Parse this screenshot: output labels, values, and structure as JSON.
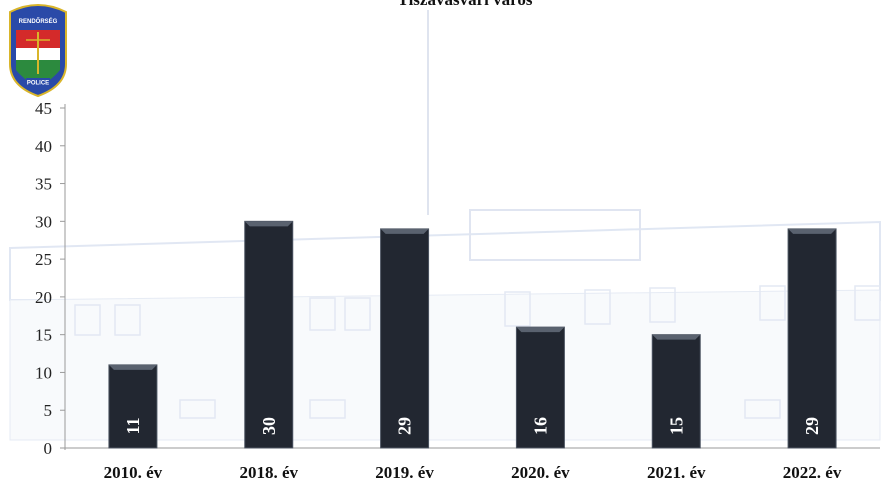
{
  "chart_data": {
    "type": "bar",
    "title": "Tiszavasvári város",
    "categories": [
      "2010. év",
      "2018. év",
      "2019. év",
      "2020. év",
      "2021. év",
      "2022. év"
    ],
    "values": [
      11,
      30,
      29,
      16,
      15,
      29
    ],
    "data_labels": [
      "11",
      "30",
      "29",
      "16",
      "15",
      "29"
    ],
    "ylim": [
      0,
      45
    ],
    "yticks": [
      0,
      5,
      10,
      15,
      20,
      25,
      30,
      35,
      40,
      45
    ],
    "ytick_labels": [
      "0",
      "5",
      "10",
      "15",
      "20",
      "25",
      "30",
      "35",
      "40",
      "45"
    ],
    "xlabel": "",
    "ylabel": "",
    "legend": "none",
    "grid": false,
    "bar_color": "#222731",
    "bar_edge_color": "#4d5562"
  },
  "logo": {
    "top_text": "RENDŐRSÉG",
    "bottom_text": "POLICE",
    "colors": {
      "red": "#d42a2a",
      "white": "#ffffff",
      "green": "#2c8a3e",
      "blue": "#2a4aa8",
      "gold": "#d9b52a"
    }
  },
  "background": {
    "description_color": "#dfe6f2"
  }
}
